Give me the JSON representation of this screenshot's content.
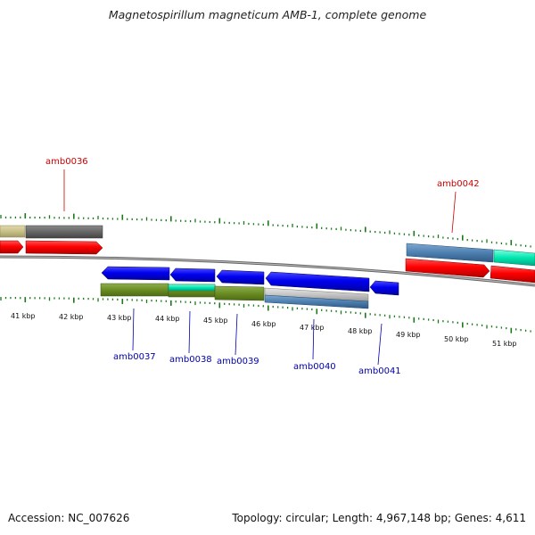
{
  "title": "Magnetospirillum magneticum AMB-1, complete genome",
  "footer": {
    "accession": "Accession: NC_007626",
    "stats": "Topology: circular; Length: 4,967,148 bp; Genes: 4,611"
  },
  "colors": {
    "forward_label": "#cc0000",
    "reverse_label": "#0000aa",
    "tick": "#1a7a1a",
    "backbone": "#8a8a8a"
  },
  "scale": {
    "unit": "kbp",
    "labels": [
      "41 kbp",
      "42 kbp",
      "43 kbp",
      "44 kbp",
      "45 kbp",
      "46 kbp",
      "47 kbp",
      "48 kbp",
      "49 kbp",
      "50 kbp",
      "51 kbp"
    ]
  },
  "genes": {
    "forward": [
      "amb0036",
      "amb0042"
    ],
    "reverse": [
      "amb0037",
      "amb0038",
      "amb0039",
      "amb0040",
      "amb0041"
    ]
  }
}
